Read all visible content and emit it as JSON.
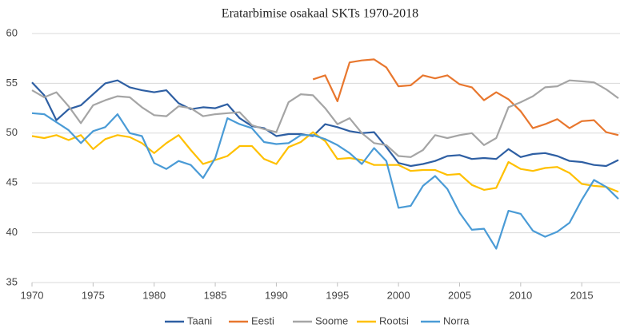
{
  "chart_data": {
    "type": "line",
    "title": "Eratarbimise osakaal SKTs 1970-2018",
    "x": [
      1970,
      1971,
      1972,
      1973,
      1974,
      1975,
      1976,
      1977,
      1978,
      1979,
      1980,
      1981,
      1982,
      1983,
      1984,
      1985,
      1986,
      1987,
      1988,
      1989,
      1990,
      1991,
      1992,
      1993,
      1994,
      1995,
      1996,
      1997,
      1998,
      1999,
      2000,
      2001,
      2002,
      2003,
      2004,
      2005,
      2006,
      2007,
      2008,
      2009,
      2010,
      2011,
      2012,
      2013,
      2014,
      2015,
      2016,
      2017,
      2018
    ],
    "xlim": [
      1970,
      2018
    ],
    "xticks": [
      1970,
      1975,
      1980,
      1985,
      1990,
      1995,
      2000,
      2005,
      2010,
      2015
    ],
    "ylim": [
      35,
      60
    ],
    "yticks": [
      35,
      40,
      45,
      50,
      55,
      60
    ],
    "grid": true,
    "legend": "bottom",
    "series": [
      {
        "name": "Taani",
        "color": "#2e5fa3",
        "values": [
          55.1,
          53.8,
          51.3,
          52.4,
          52.8,
          53.9,
          55.0,
          55.3,
          54.6,
          54.3,
          54.1,
          54.3,
          53.0,
          52.4,
          52.6,
          52.5,
          52.9,
          51.5,
          50.7,
          50.5,
          49.7,
          49.9,
          49.9,
          49.7,
          50.9,
          50.6,
          50.2,
          50.0,
          50.1,
          48.6,
          47.0,
          46.7,
          46.9,
          47.2,
          47.7,
          47.8,
          47.4,
          47.5,
          47.4,
          48.4,
          47.6,
          47.9,
          48.0,
          47.7,
          47.2,
          47.1,
          46.8,
          46.7,
          47.3
        ]
      },
      {
        "name": "Eesti",
        "color": "#e8772e",
        "values": [
          null,
          null,
          null,
          null,
          null,
          null,
          null,
          null,
          null,
          null,
          null,
          null,
          null,
          null,
          null,
          null,
          null,
          null,
          null,
          null,
          null,
          null,
          null,
          55.4,
          55.8,
          53.2,
          57.1,
          57.3,
          57.4,
          56.6,
          54.7,
          54.8,
          55.8,
          55.5,
          55.8,
          54.9,
          54.6,
          53.3,
          54.1,
          53.4,
          52.2,
          50.5,
          50.9,
          51.4,
          50.5,
          51.2,
          51.3,
          50.1,
          49.8
        ]
      },
      {
        "name": "Soome",
        "color": "#a5a5a5",
        "values": [
          54.3,
          53.6,
          54.1,
          52.7,
          51.0,
          52.8,
          53.3,
          53.7,
          53.6,
          52.6,
          51.8,
          51.7,
          52.7,
          52.5,
          51.7,
          51.9,
          52.0,
          52.1,
          50.8,
          50.4,
          50.1,
          53.1,
          53.9,
          53.8,
          52.5,
          50.9,
          51.5,
          50.0,
          49.0,
          48.8,
          47.7,
          47.6,
          48.3,
          49.8,
          49.5,
          49.8,
          50.0,
          48.8,
          49.5,
          52.6,
          53.1,
          53.7,
          54.6,
          54.7,
          55.3,
          55.2,
          55.1,
          54.4,
          53.5
        ]
      },
      {
        "name": "Rootsi",
        "color": "#ffc000",
        "values": [
          49.7,
          49.5,
          49.8,
          49.3,
          49.8,
          48.4,
          49.4,
          49.8,
          49.6,
          49.0,
          48.0,
          49.0,
          49.8,
          48.3,
          46.9,
          47.3,
          47.7,
          48.7,
          48.7,
          47.4,
          46.9,
          48.6,
          49.1,
          50.1,
          49.2,
          47.4,
          47.5,
          47.3,
          46.8,
          46.8,
          46.8,
          46.2,
          46.3,
          46.3,
          45.8,
          45.9,
          44.8,
          44.3,
          44.5,
          47.1,
          46.4,
          46.2,
          46.5,
          46.6,
          46.0,
          44.9,
          44.7,
          44.6,
          44.1
        ]
      },
      {
        "name": "Norra",
        "color": "#4a9bd6",
        "values": [
          52.0,
          51.9,
          51.1,
          50.3,
          49.0,
          50.2,
          50.6,
          51.9,
          50.0,
          49.7,
          47.0,
          46.4,
          47.2,
          46.8,
          45.5,
          47.5,
          51.5,
          50.9,
          50.5,
          49.1,
          48.9,
          49.0,
          49.8,
          49.8,
          49.4,
          48.8,
          48.0,
          46.9,
          48.5,
          47.2,
          42.5,
          42.7,
          44.7,
          45.7,
          44.4,
          42.0,
          40.3,
          40.4,
          38.4,
          42.2,
          41.9,
          40.2,
          39.6,
          40.1,
          41.0,
          43.3,
          45.3,
          44.6,
          43.4
        ]
      }
    ]
  }
}
